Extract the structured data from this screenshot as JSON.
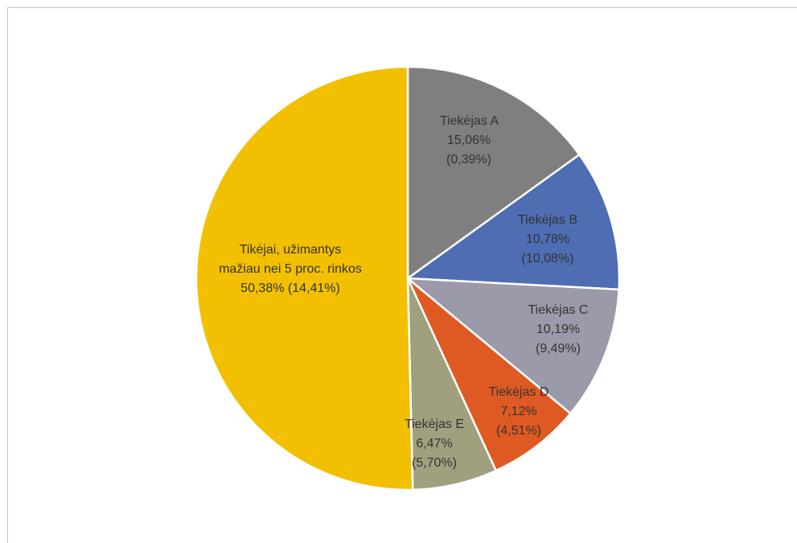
{
  "chart_data": {
    "type": "pie",
    "categories": [
      "Tiekėjas A",
      "Tiekėjas B",
      "Tiekėjas C",
      "Tiekėjas D",
      "Tiekėjas E",
      "Tikėjai, užimantys mažiau nei 5 proc. rinkos"
    ],
    "values": [
      15.06,
      10.78,
      10.19,
      7.12,
      6.47,
      50.38
    ],
    "value_labels": [
      "15,06%",
      "10,78%",
      "10,19%",
      "7,12%",
      "6,47%",
      "50,38%"
    ],
    "secondary_labels": [
      "(0,39%)",
      "(10,08%)",
      "(9,49%)",
      "(4,51%)",
      "(5,70%)",
      "(14,41%)"
    ],
    "colors": [
      "#7f7f7f",
      "#4e6db3",
      "#9a9aaa",
      "#df5a22",
      "#a0a07f",
      "#f2c000"
    ]
  }
}
